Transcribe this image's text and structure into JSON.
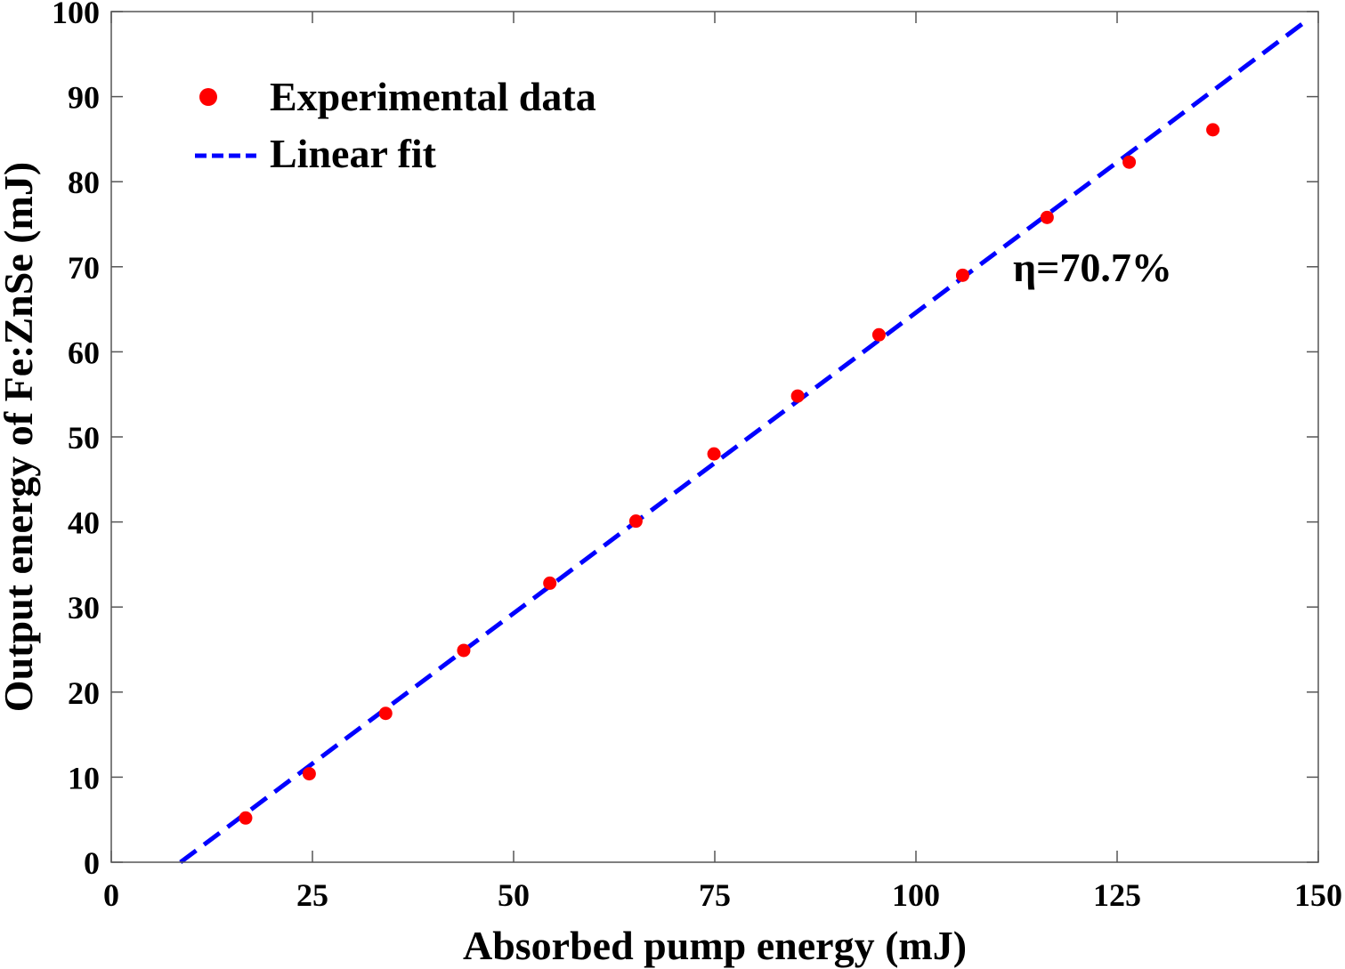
{
  "chart_data": {
    "type": "scatter",
    "xlabel": "Absorbed pump energy (mJ)",
    "ylabel": "Output energy of Fe:ZnSe (mJ)",
    "xlim": [
      0,
      150
    ],
    "ylim": [
      0,
      100
    ],
    "xticks": [
      "0",
      "25",
      "50",
      "75",
      "100",
      "125",
      "150"
    ],
    "yticks": [
      "0",
      "10",
      "20",
      "30",
      "40",
      "50",
      "60",
      "70",
      "80",
      "90",
      "100"
    ],
    "grid": false,
    "legend_position": "top-left",
    "annotation": "η=70.7%",
    "series": [
      {
        "name": "Experimental data",
        "kind": "scatter",
        "color": "#ff0000",
        "x": [
          16.7,
          24.6,
          34.1,
          43.8,
          54.5,
          65.2,
          74.9,
          85.3,
          95.4,
          105.8,
          116.3,
          126.5,
          136.9
        ],
        "y": [
          5.2,
          10.4,
          17.5,
          24.9,
          32.8,
          40.1,
          48.0,
          54.8,
          62.0,
          69.0,
          75.8,
          82.3,
          86.1
        ]
      },
      {
        "name": "Linear fit",
        "kind": "dashed-line",
        "color": "#0000ff",
        "x": [
          8.6,
          148.5
        ],
        "y": [
          0,
          98.9
        ]
      }
    ]
  }
}
